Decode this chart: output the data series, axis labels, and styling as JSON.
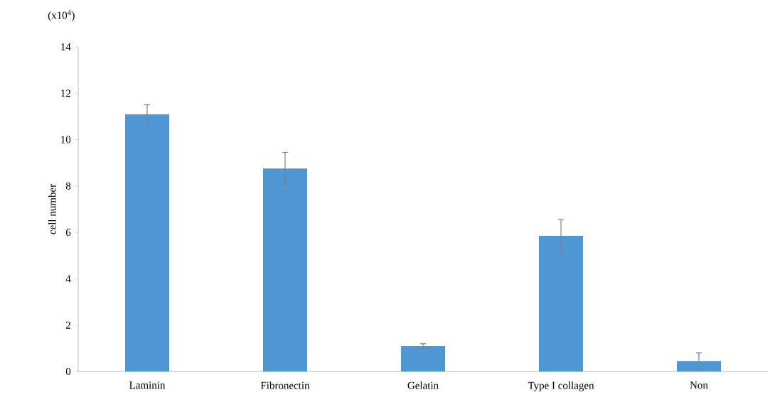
{
  "chart_data": {
    "type": "bar",
    "ylabel": "cell number",
    "annotations": [
      "(x10$^{4}$)"
    ],
    "categories": [
      "Laminin",
      "Fibronectin",
      "Gelatin",
      "Type I collagen",
      "Non"
    ],
    "values": [
      11.1,
      8.75,
      1.1,
      5.85,
      0.45
    ],
    "errors": [
      0.4,
      0.7,
      0.1,
      0.7,
      0.35
    ],
    "color": "#4f97d3",
    "ylim": [
      0,
      14
    ],
    "yticks": [
      0,
      2,
      4,
      6,
      8,
      10,
      12,
      14
    ],
    "grid": false
  }
}
